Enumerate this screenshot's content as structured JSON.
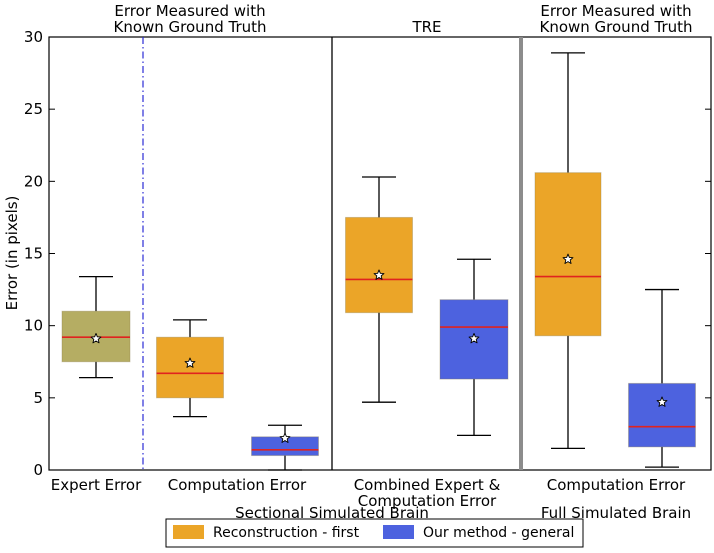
{
  "chart_data": {
    "type": "box",
    "ylabel": "Error (in pixels)",
    "ylim": [
      0,
      30
    ],
    "yticks": [
      0,
      5,
      10,
      15,
      20,
      25,
      30
    ],
    "grid": false,
    "legend_position": "bottom-center",
    "colors": {
      "expert": "#b5ad63",
      "reconstruction": "#eba528",
      "ours": "#4d62df",
      "median": "#e0231f",
      "dashdot": "#2b2bd6"
    },
    "sections": [
      {
        "title": [
          "Error Measured with",
          "Known Ground Truth"
        ]
      },
      {
        "title": [
          "TRE"
        ]
      },
      {
        "title": [
          "Error Measured with",
          "Known Ground Truth"
        ]
      }
    ],
    "category_labels": [
      [
        "Expert Error"
      ],
      [
        "Computation Error"
      ],
      [
        "Combined Expert &",
        "Computation Error"
      ],
      [
        "Computation Error"
      ]
    ],
    "group_labels": [
      "Sectional Simulated Brain",
      "Full Simulated Brain"
    ],
    "series": [
      {
        "name": "Reconstruction - first",
        "color": "#eba528"
      },
      {
        "name": "Our method - general",
        "color": "#4d62df"
      }
    ],
    "boxes": [
      {
        "category": "Expert Error",
        "color": "#b5ad63",
        "whisker_low": 6.4,
        "q1": 7.5,
        "median": 9.2,
        "q3": 11.0,
        "whisker_high": 13.4,
        "mean": 9.1
      },
      {
        "category": "Computation Error",
        "series": "Reconstruction - first",
        "color": "#eba528",
        "whisker_low": 3.7,
        "q1": 5.0,
        "median": 6.7,
        "q3": 9.2,
        "whisker_high": 10.4,
        "mean": 7.4
      },
      {
        "category": "Computation Error",
        "series": "Our method - general",
        "color": "#4d62df",
        "whisker_low": 0.0,
        "q1": 1.0,
        "median": 1.4,
        "q3": 2.3,
        "whisker_high": 3.1,
        "mean": 2.2
      },
      {
        "category": "Combined Expert & Computation Error",
        "series": "Reconstruction - first",
        "color": "#eba528",
        "whisker_low": 4.7,
        "q1": 10.9,
        "median": 13.2,
        "q3": 17.5,
        "whisker_high": 20.3,
        "mean": 13.5
      },
      {
        "category": "Combined Expert & Computation Error",
        "series": "Our method - general",
        "color": "#4d62df",
        "whisker_low": 2.4,
        "q1": 6.3,
        "median": 9.9,
        "q3": 11.8,
        "whisker_high": 14.6,
        "mean": 9.1
      },
      {
        "category": "Computation Error",
        "series": "Reconstruction - first",
        "color": "#eba528",
        "whisker_low": 1.5,
        "q1": 9.3,
        "median": 13.4,
        "q3": 20.6,
        "whisker_high": 28.9,
        "mean": 14.6
      },
      {
        "category": "Computation Error",
        "series": "Our method - general",
        "color": "#4d62df",
        "whisker_low": 0.2,
        "q1": 1.6,
        "median": 3.0,
        "q3": 6.0,
        "whisker_high": 12.5,
        "mean": 4.7
      }
    ]
  }
}
